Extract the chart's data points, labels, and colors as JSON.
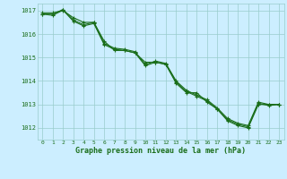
{
  "background_color": "#cceeff",
  "grid_color": "#99cccc",
  "line_color": "#1a6e1a",
  "marker_color": "#1a6e1a",
  "xlabel": "Graphe pression niveau de la mer (hPa)",
  "xlim": [
    -0.5,
    23.5
  ],
  "ylim": [
    1011.5,
    1017.3
  ],
  "yticks": [
    1012,
    1013,
    1014,
    1015,
    1016,
    1017
  ],
  "xticks": [
    0,
    1,
    2,
    3,
    4,
    5,
    6,
    7,
    8,
    9,
    10,
    11,
    12,
    13,
    14,
    15,
    16,
    17,
    18,
    19,
    20,
    21,
    22,
    23
  ],
  "series": [
    [
      1016.9,
      1016.9,
      1017.0,
      1016.7,
      1016.5,
      1016.5,
      1015.7,
      1015.3,
      1015.3,
      1015.2,
      1014.8,
      1014.8,
      1014.7,
      1013.9,
      1013.5,
      1013.5,
      1013.1,
      1012.8,
      1012.3,
      1012.1,
      1012.0,
      1013.0,
      1013.0,
      1013.0
    ],
    [
      1016.85,
      1016.85,
      1017.05,
      1016.6,
      1016.4,
      1016.5,
      1015.6,
      1015.4,
      1015.35,
      1015.25,
      1014.7,
      1014.85,
      1014.75,
      1014.0,
      1013.6,
      1013.4,
      1013.2,
      1012.85,
      1012.4,
      1012.2,
      1012.1,
      1013.1,
      1013.0,
      1013.0
    ],
    [
      1016.85,
      1016.8,
      1017.02,
      1016.55,
      1016.35,
      1016.45,
      1015.55,
      1015.35,
      1015.3,
      1015.2,
      1014.65,
      1014.8,
      1014.72,
      1013.95,
      1013.55,
      1013.35,
      1013.15,
      1012.8,
      1012.35,
      1012.15,
      1012.05,
      1013.05,
      1012.95,
      1013.0
    ]
  ]
}
